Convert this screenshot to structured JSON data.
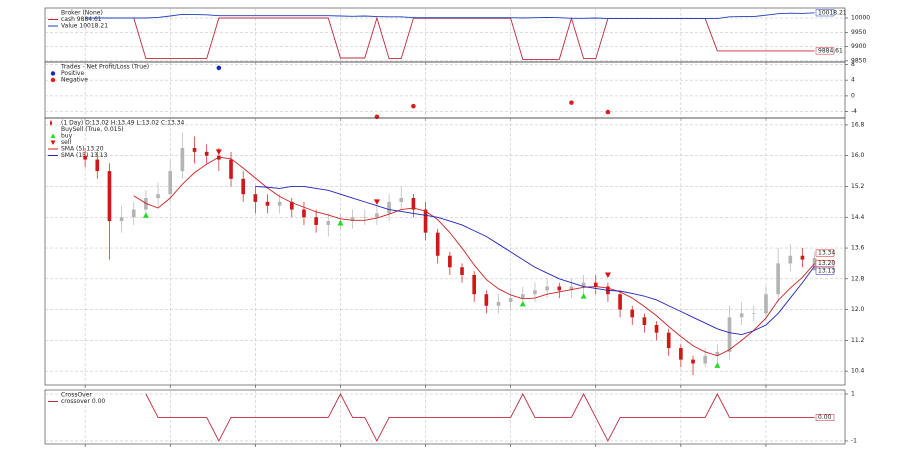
{
  "chart_data": [
    {
      "type": "line",
      "legend_title": "Broker (None)",
      "xlim": [
        -3.3,
        62.5
      ],
      "xticks": [
        0,
        7,
        14,
        21,
        28,
        35,
        42,
        49,
        56
      ],
      "ylim": [
        9846,
        10035
      ],
      "yticks": [
        9850,
        9900,
        9950,
        10000
      ],
      "grid": true,
      "series": [
        {
          "name": "cash 9884.61",
          "color": "#c0283c",
          "values": [
            10000,
            10000,
            10000,
            10000,
            10000,
            9858,
            9858,
            9858,
            9858,
            9858,
            9858,
            10000,
            10000,
            10000,
            10000,
            10000,
            10000,
            10000,
            10000,
            10000,
            10000,
            9860,
            9860,
            9860,
            10000,
            9858,
            9858,
            9999,
            9999,
            9999,
            9999,
            9999,
            9999,
            9999,
            9999,
            9999,
            9855,
            9855,
            9855,
            9855,
            9999,
            9858,
            9858,
            9998,
            9998,
            9998,
            9998,
            9998,
            9998,
            9998,
            9998,
            9998,
            9884.61,
            9884.61,
            9884.61,
            9884.61,
            9884.61,
            9884.61,
            9884.61,
            9884.61,
            9884.61
          ]
        },
        {
          "name": "Value 10018.21",
          "color": "#1f3fbf",
          "values": [
            10000,
            10000,
            10000,
            10000,
            10000,
            10000,
            10002,
            10007,
            10013,
            10012,
            10011,
            10008,
            10008,
            10008,
            10008,
            10008,
            10008,
            10008,
            10008,
            10008,
            10008,
            10007,
            10006,
            10007,
            10005,
            10004,
            10004,
            10001,
            10001,
            10001,
            10001,
            10001,
            10001,
            10001,
            10001,
            10001,
            10000,
            10001,
            10002,
            10001,
            9999,
            9999,
            10000,
            9998,
            9998,
            9998,
            9998,
            9998,
            9998,
            9998,
            9998,
            9998,
            9998,
            10004,
            10005,
            10005,
            10010,
            10015,
            10017,
            10016,
            10018.21
          ]
        }
      ]
    },
    {
      "type": "scatter",
      "legend_title": "Trades - Net Profit/Loss (True)",
      "xlim": [
        -3.3,
        62.5
      ],
      "xticks": [
        0,
        7,
        14,
        21,
        28,
        35,
        42,
        49,
        56
      ],
      "ylim": [
        -5.6,
        8.6
      ],
      "yticks": [
        -4,
        0,
        4,
        8
      ],
      "grid": true,
      "series": [
        {
          "name": "Positive",
          "color": "#1428c8",
          "x": [
            11
          ],
          "values": [
            7.1
          ]
        },
        {
          "name": "Negative",
          "color": "#dc1e1e",
          "x": [
            24,
            27,
            40,
            43
          ],
          "values": [
            -5.3,
            -2.6,
            -1.7,
            -4.1
          ]
        }
      ]
    },
    {
      "type": "candlestick",
      "xlim": [
        -3.3,
        62.5
      ],
      "xticks": [
        0,
        7,
        14,
        21,
        28,
        35,
        42,
        49,
        56
      ],
      "ylim": [
        10.04,
        16.98
      ],
      "yticks": [
        10.4,
        11.2,
        {
          "value": 12,
          "label": "12.0"
        },
        12.8,
        13.6,
        14.4,
        15.2,
        {
          "value": 16,
          "label": "16.0"
        },
        16.8
      ],
      "grid": true,
      "ohlc": {
        "name": "(1 Day) O:13.02 H:13.49 L:13.02 C:13.34",
        "up_color": "#b4b4b4",
        "down_color": "#d01818",
        "open": [
          16.0,
          15.9,
          15.6,
          14.3,
          14.4,
          14.6,
          14.9,
          15.0,
          15.6,
          16.2,
          16.1,
          16.0,
          15.9,
          15.4,
          15.0,
          14.8,
          14.7,
          14.8,
          14.6,
          14.4,
          14.2,
          14.3,
          14.3,
          14.4,
          14.4,
          14.5,
          14.8,
          14.9,
          14.6,
          14.0,
          13.4,
          13.1,
          12.9,
          12.4,
          12.1,
          12.2,
          12.3,
          12.4,
          12.5,
          12.6,
          12.5,
          12.6,
          12.7,
          12.6,
          12.4,
          12.0,
          11.8,
          11.6,
          11.4,
          11.0,
          10.7,
          10.6,
          10.8,
          10.9,
          11.8,
          11.9,
          11.9,
          12.4,
          13.2,
          13.4,
          13.02
        ],
        "high": [
          16.2,
          16.1,
          15.8,
          14.7,
          14.8,
          15.1,
          15.3,
          15.9,
          16.6,
          16.5,
          16.3,
          16.2,
          16.1,
          15.6,
          15.2,
          15.0,
          15.0,
          14.9,
          14.8,
          14.6,
          14.5,
          14.5,
          14.6,
          14.6,
          14.7,
          15.0,
          15.2,
          15.0,
          14.8,
          14.1,
          13.5,
          13.2,
          13.0,
          12.5,
          12.4,
          12.5,
          12.6,
          12.7,
          12.8,
          12.7,
          12.8,
          12.9,
          12.9,
          12.7,
          12.5,
          12.1,
          11.9,
          11.7,
          11.5,
          11.1,
          10.8,
          11.0,
          11.1,
          12.1,
          12.2,
          12.1,
          12.6,
          13.6,
          13.7,
          13.6,
          13.49
        ],
        "low": [
          15.7,
          15.4,
          13.3,
          14.0,
          14.2,
          14.4,
          14.7,
          14.8,
          15.4,
          15.8,
          15.8,
          15.6,
          15.2,
          14.8,
          14.5,
          14.5,
          14.5,
          14.4,
          14.2,
          14.0,
          13.9,
          14.1,
          14.1,
          14.2,
          14.2,
          14.3,
          14.6,
          14.4,
          13.8,
          13.2,
          12.9,
          12.7,
          12.2,
          11.9,
          11.9,
          12.0,
          12.1,
          12.2,
          12.3,
          12.3,
          12.3,
          12.4,
          12.4,
          12.2,
          11.8,
          11.6,
          11.4,
          11.2,
          10.8,
          10.5,
          10.3,
          10.5,
          10.6,
          10.7,
          11.6,
          11.7,
          11.7,
          12.2,
          13.0,
          13.1,
          13.02
        ],
        "close": [
          15.9,
          15.6,
          14.3,
          14.4,
          14.6,
          14.9,
          15.0,
          15.6,
          16.2,
          16.1,
          16.0,
          15.9,
          15.4,
          15.0,
          14.8,
          14.7,
          14.8,
          14.6,
          14.4,
          14.2,
          14.3,
          14.3,
          14.4,
          14.4,
          14.5,
          14.8,
          14.9,
          14.6,
          14.0,
          13.4,
          13.1,
          12.9,
          12.4,
          12.1,
          12.2,
          12.3,
          12.4,
          12.5,
          12.6,
          12.5,
          12.6,
          12.7,
          12.6,
          12.4,
          12.0,
          11.8,
          11.6,
          11.4,
          11.0,
          10.7,
          10.6,
          10.8,
          10.9,
          11.8,
          11.9,
          11.9,
          12.4,
          13.2,
          13.4,
          13.3,
          13.34
        ]
      },
      "markers_title": "BuySell (True, 0.015)",
      "markers": [
        {
          "name": "buy",
          "color": "#22dd22",
          "direction": "up",
          "x": [
            5,
            21,
            36,
            41,
            52
          ],
          "values": [
            14.45,
            14.25,
            12.15,
            12.35,
            10.55
          ]
        },
        {
          "name": "sell",
          "color": "#dd1111",
          "direction": "down",
          "x": [
            11,
            24,
            43
          ],
          "values": [
            16.1,
            14.8,
            12.9
          ]
        }
      ],
      "series": [
        {
          "name": "SMA (5) 13.20",
          "color": "#cc2222",
          "values": [
            null,
            null,
            null,
            null,
            14.96,
            14.76,
            14.64,
            14.9,
            15.26,
            15.56,
            15.78,
            15.96,
            15.92,
            15.68,
            15.42,
            15.16,
            14.94,
            14.78,
            14.66,
            14.54,
            14.46,
            14.36,
            14.32,
            14.32,
            14.38,
            14.48,
            14.6,
            14.64,
            14.56,
            14.34,
            14.0,
            13.6,
            13.16,
            12.78,
            12.54,
            12.38,
            12.28,
            12.3,
            12.4,
            12.46,
            12.52,
            12.58,
            12.6,
            12.56,
            12.46,
            12.3,
            12.08,
            11.84,
            11.56,
            11.3,
            11.06,
            10.9,
            10.8,
            10.96,
            11.2,
            11.46,
            11.78,
            12.24,
            12.56,
            12.84,
            13.2
          ],
          "value_labels": [
            null,
            null,
            null,
            null,
            null,
            null,
            null,
            null,
            null,
            null,
            null,
            null,
            null,
            null,
            null,
            null,
            null,
            null,
            null,
            null,
            null,
            null,
            null,
            null,
            null,
            null,
            null,
            null,
            null,
            null,
            null,
            null,
            null,
            null,
            null,
            null,
            null,
            null,
            null,
            null,
            null,
            null,
            null,
            null,
            null,
            null,
            null,
            null,
            null,
            null,
            null,
            null,
            null,
            null,
            null,
            null,
            null,
            null,
            null,
            null,
            "13.20"
          ]
        },
        {
          "name": "SMA (15) 13.13",
          "color": "#2222bb",
          "values": [
            null,
            null,
            null,
            null,
            null,
            null,
            null,
            null,
            null,
            null,
            null,
            null,
            null,
            null,
            15.2,
            15.18,
            15.15,
            15.2,
            15.2,
            15.15,
            15.1,
            15.0,
            14.9,
            14.8,
            14.7,
            14.6,
            14.55,
            14.5,
            14.45,
            14.4,
            14.3,
            14.2,
            14.05,
            13.9,
            13.7,
            13.5,
            13.3,
            13.1,
            12.95,
            12.8,
            12.7,
            12.6,
            12.55,
            12.5,
            12.48,
            12.42,
            12.35,
            12.25,
            12.1,
            11.95,
            11.8,
            11.65,
            11.5,
            11.4,
            11.35,
            11.45,
            11.6,
            11.9,
            12.3,
            12.7,
            13.13
          ]
        }
      ]
    },
    {
      "type": "line",
      "legend_title": "CrossOver",
      "xlim": [
        -3.3,
        62.5
      ],
      "xticks": [
        0,
        7,
        14,
        21,
        28,
        35,
        42,
        49,
        56
      ],
      "ylim": [
        -1.13,
        1.17
      ],
      "yticks": [
        -1,
        1
      ],
      "grid": true,
      "series": [
        {
          "name": "crossover 0.00",
          "color": "#c0283c",
          "values": [
            null,
            null,
            null,
            null,
            null,
            1,
            0,
            0,
            0,
            0,
            0,
            -1,
            0,
            0,
            0,
            0,
            0,
            0,
            0,
            0,
            0,
            1,
            0,
            0,
            -1,
            0,
            0,
            0,
            0,
            0,
            0,
            0,
            0,
            0,
            0,
            0,
            1,
            0,
            0,
            0,
            0,
            1,
            0,
            -1,
            0,
            0,
            0,
            0,
            0,
            0,
            0,
            0,
            1,
            0,
            0,
            0,
            0,
            0,
            0,
            0,
            0
          ],
          "value_labels": [
            null,
            null,
            null,
            null,
            null,
            null,
            null,
            null,
            null,
            null,
            null,
            null,
            null,
            null,
            null,
            null,
            null,
            null,
            null,
            null,
            null,
            null,
            null,
            null,
            null,
            null,
            null,
            null,
            null,
            null,
            null,
            null,
            null,
            null,
            null,
            null,
            null,
            null,
            null,
            null,
            null,
            null,
            null,
            null,
            null,
            null,
            null,
            null,
            null,
            null,
            null,
            null,
            null,
            null,
            null,
            null,
            null,
            null,
            null,
            null,
            "0.00"
          ]
        }
      ]
    }
  ]
}
